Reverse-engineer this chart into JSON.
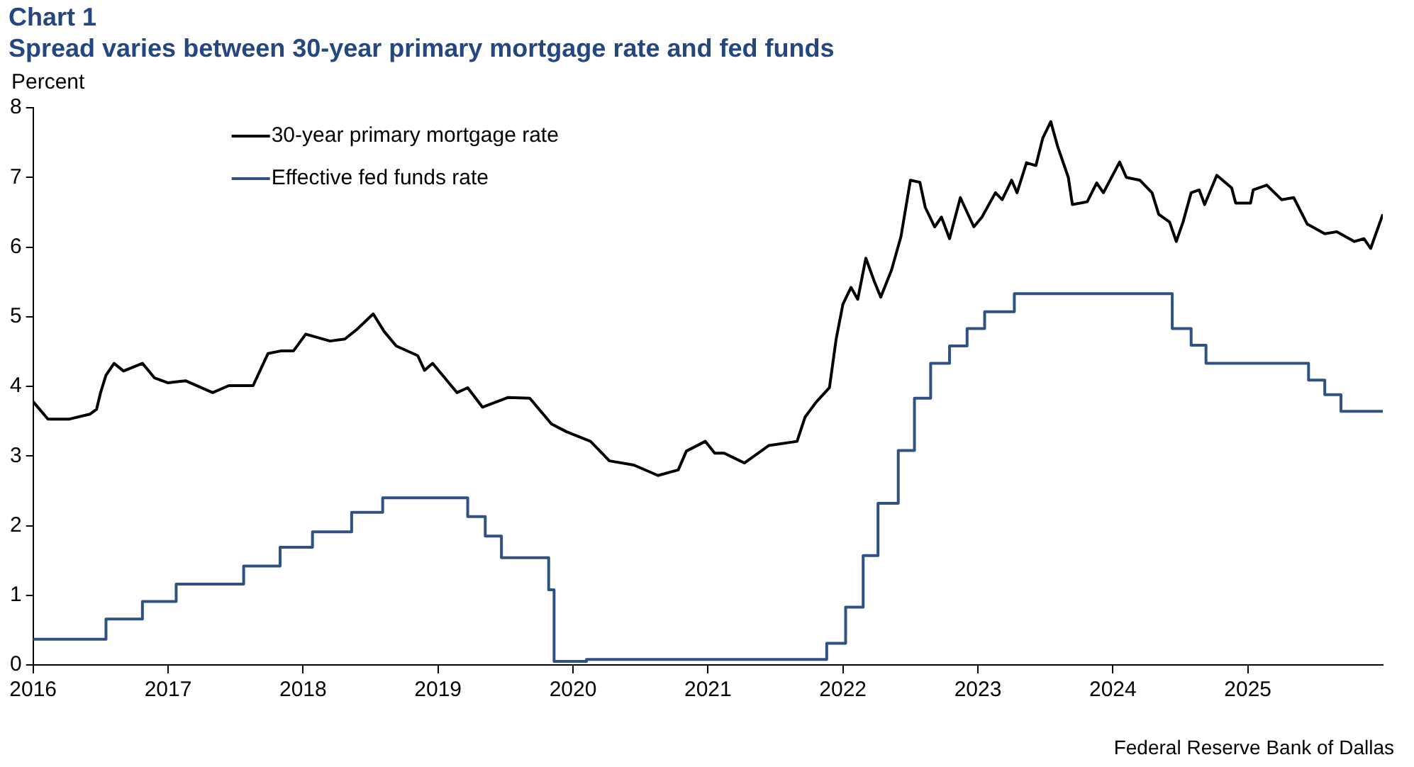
{
  "chart_data": {
    "type": "line",
    "title": "Chart 1",
    "subtitle": "Spread varies between 30-year primary mortgage rate and fed funds",
    "ylabel": "Percent",
    "annotations": [
      "Federal Reserve Bank of Dallas"
    ],
    "xlim": [
      2016,
      2026
    ],
    "xticks": [
      2016,
      2017,
      2018,
      2019,
      2020,
      2021,
      2022,
      2023,
      2024,
      2025
    ],
    "ylim": [
      0,
      8
    ],
    "yticks": [
      0,
      1,
      2,
      3,
      4,
      5,
      6,
      7,
      8
    ],
    "grid": false,
    "legend": "top left",
    "marker": "none",
    "line_style": "solid",
    "series": [
      {
        "name": "30-year primary mortgage rate",
        "color": "#000000",
        "type": "line",
        "x": [
          2016.0,
          2016.11,
          2016.27,
          2016.42,
          2016.47,
          2016.5,
          2016.54,
          2016.6,
          2016.67,
          2016.81,
          2016.9,
          2017.0,
          2017.13,
          2017.33,
          2017.45,
          2017.63,
          2017.74,
          2017.84,
          2017.93,
          2018.02,
          2018.2,
          2018.31,
          2018.4,
          2018.52,
          2018.6,
          2018.69,
          2018.85,
          2018.9,
          2018.96,
          2019.08,
          2019.14,
          2019.22,
          2019.33,
          2019.52,
          2019.68,
          2019.84,
          2019.95,
          2020.13,
          2020.27,
          2020.45,
          2020.63,
          2020.78,
          2020.84,
          2020.98,
          2021.05,
          2021.12,
          2021.27,
          2021.45,
          2021.66,
          2021.72,
          2021.8,
          2021.9,
          2021.95,
          2022.0,
          2022.06,
          2022.11,
          2022.17,
          2022.23,
          2022.28,
          2022.36,
          2022.43,
          2022.5,
          2022.57,
          2022.61,
          2022.68,
          2022.73,
          2022.79,
          2022.87,
          2022.97,
          2023.03,
          2023.13,
          2023.18,
          2023.25,
          2023.29,
          2023.36,
          2023.43,
          2023.48,
          2023.54,
          2023.59,
          2023.67,
          2023.7,
          2023.81,
          2023.88,
          2023.93,
          2024.05,
          2024.1,
          2024.2,
          2024.29,
          2024.34,
          2024.42,
          2024.47,
          2024.52,
          2024.58,
          2024.64,
          2024.68,
          2024.77,
          2024.88,
          2024.91,
          2025.02,
          2025.04,
          2025.14,
          2025.25,
          2025.34,
          2025.44,
          2025.57,
          2025.66,
          2025.79,
          2025.86,
          2025.91,
          2026.0
        ],
        "values": [
          3.78,
          3.53,
          3.53,
          3.6,
          3.67,
          3.91,
          4.16,
          4.33,
          4.22,
          4.33,
          4.12,
          4.05,
          4.08,
          3.91,
          4.01,
          4.01,
          4.47,
          4.51,
          4.51,
          4.75,
          4.65,
          4.68,
          4.82,
          5.04,
          4.79,
          4.58,
          4.44,
          4.23,
          4.33,
          4.05,
          3.91,
          3.98,
          3.7,
          3.84,
          3.83,
          3.46,
          3.35,
          3.21,
          2.93,
          2.87,
          2.72,
          2.8,
          3.07,
          3.21,
          3.04,
          3.04,
          2.9,
          3.15,
          3.21,
          3.56,
          3.77,
          3.98,
          4.68,
          5.18,
          5.42,
          5.25,
          5.84,
          5.52,
          5.28,
          5.67,
          6.15,
          6.96,
          6.93,
          6.57,
          6.29,
          6.43,
          6.12,
          6.71,
          6.29,
          6.43,
          6.78,
          6.68,
          6.96,
          6.78,
          7.21,
          7.17,
          7.56,
          7.8,
          7.45,
          7.0,
          6.61,
          6.65,
          6.92,
          6.78,
          7.22,
          7.0,
          6.96,
          6.78,
          6.47,
          6.36,
          6.08,
          6.36,
          6.78,
          6.82,
          6.61,
          7.03,
          6.85,
          6.63,
          6.63,
          6.82,
          6.89,
          6.68,
          6.71,
          6.33,
          6.19,
          6.22,
          6.08,
          6.12,
          5.98,
          6.47
        ]
      },
      {
        "name": "Effective fed funds rate",
        "color": "#2f5285",
        "type": "step",
        "x": [
          2016.0,
          2016.54,
          2016.81,
          2017.06,
          2017.56,
          2017.83,
          2018.07,
          2018.36,
          2018.59,
          2019.22,
          2019.35,
          2019.47,
          2019.82,
          2019.86,
          2020.1,
          2021.88,
          2022.02,
          2022.15,
          2022.26,
          2022.41,
          2022.53,
          2022.65,
          2022.79,
          2022.92,
          2023.05,
          2023.27,
          2024.44,
          2024.58,
          2024.69,
          2025.45,
          2025.57,
          2025.69,
          2026.0
        ],
        "values": [
          0.37,
          0.66,
          0.91,
          1.16,
          1.42,
          1.69,
          1.91,
          2.19,
          2.4,
          2.13,
          1.85,
          1.54,
          1.08,
          0.05,
          0.08,
          0.31,
          0.83,
          1.57,
          2.32,
          3.08,
          3.83,
          4.33,
          4.58,
          4.83,
          5.07,
          5.33,
          4.83,
          4.59,
          4.33,
          4.09,
          3.88,
          3.64,
          3.64
        ]
      }
    ]
  }
}
